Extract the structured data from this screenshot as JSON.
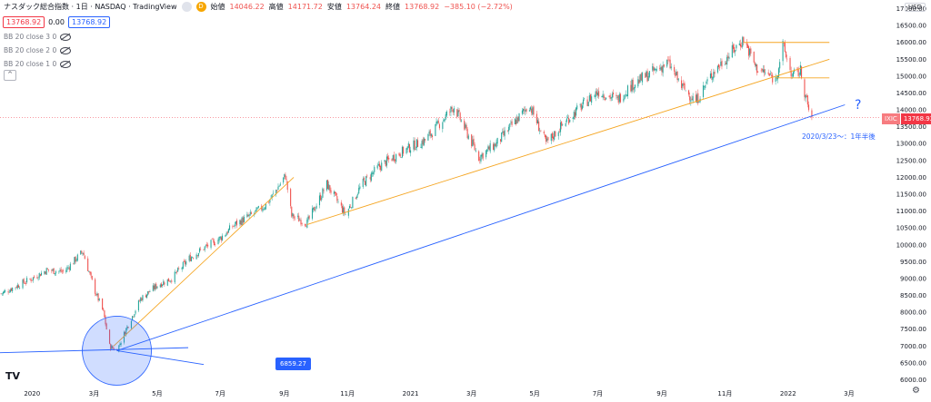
{
  "header": {
    "title": "ナスダック総合指数 · 1日 · NASDAQ · TradingView",
    "d_badge": "D",
    "open_label": "始値",
    "open_value": "14046.22",
    "high_label": "高値",
    "high_value": "14171.72",
    "low_label": "安値",
    "low_value": "13764.24",
    "close_label": "終値",
    "close_value": "13768.92",
    "change": "−385.10 (−2.72%)"
  },
  "price_boxes": {
    "sell": "13768.92",
    "spread": "0.00",
    "buy": "13768.92"
  },
  "indicators": [
    "BB 20 close 3 0",
    "BB 20 close 2 0",
    "BB 20 close 1 0"
  ],
  "collapse_label": "^",
  "currency": "USD",
  "price_tag": {
    "code": "IXIC",
    "value": "13768.92"
  },
  "annotations": {
    "question": "?",
    "note": "2020/3/23〜：1年半後",
    "value_box": "6859.27"
  },
  "logo_text": "TV",
  "settings_icon": "gear-icon",
  "chart_data": {
    "type": "candlestick",
    "x_tick_labels": [
      "2020",
      "3月",
      "5月",
      "7月",
      "9月",
      "11月",
      "2021",
      "3月",
      "5月",
      "7月",
      "9月",
      "11月",
      "2022",
      "3月"
    ],
    "x_tick_dates": [
      "2020-01-01",
      "2020-03-01",
      "2020-05-01",
      "2020-07-01",
      "2020-09-01",
      "2020-11-01",
      "2021-01-01",
      "2021-03-01",
      "2021-05-01",
      "2021-07-01",
      "2021-09-01",
      "2021-11-01",
      "2022-01-01",
      "2022-03-01"
    ],
    "y_tick_labels": [
      "6000.00",
      "6500.00",
      "7000.00",
      "7500.00",
      "8000.00",
      "8500.00",
      "9000.00",
      "9500.00",
      "10000.00",
      "10500.00",
      "11000.00",
      "11500.00",
      "12000.00",
      "12500.00",
      "13000.00",
      "13500.00",
      "14000.00",
      "14500.00",
      "15000.00",
      "15500.00",
      "16000.00",
      "16500.00",
      "17000.00"
    ],
    "ylim": [
      5850,
      17150
    ],
    "series": [
      {
        "values": [
          [
            "2019-12-02",
            8550
          ],
          [
            "2019-12-15",
            8750
          ],
          [
            "2020-01-01",
            9000
          ],
          [
            "2020-01-15",
            9250
          ],
          [
            "2020-02-01",
            9200
          ],
          [
            "2020-02-19",
            9800
          ],
          [
            "2020-03-01",
            8700
          ],
          [
            "2020-03-10",
            8000
          ],
          [
            "2020-03-16",
            7000
          ],
          [
            "2020-03-23",
            6860
          ],
          [
            "2020-04-01",
            7500
          ],
          [
            "2020-04-15",
            8400
          ],
          [
            "2020-05-01",
            8800
          ],
          [
            "2020-05-15",
            9000
          ],
          [
            "2020-06-01",
            9600
          ],
          [
            "2020-06-15",
            9900
          ],
          [
            "2020-07-01",
            10200
          ],
          [
            "2020-07-15",
            10600
          ],
          [
            "2020-08-01",
            10900
          ],
          [
            "2020-08-15",
            11200
          ],
          [
            "2020-09-02",
            12050
          ],
          [
            "2020-09-08",
            10850
          ],
          [
            "2020-09-23",
            10650
          ],
          [
            "2020-10-12",
            11800
          ],
          [
            "2020-10-30",
            10900
          ],
          [
            "2020-11-15",
            11800
          ],
          [
            "2020-12-01",
            12300
          ],
          [
            "2020-12-15",
            12600
          ],
          [
            "2021-01-01",
            12900
          ],
          [
            "2021-01-15",
            13100
          ],
          [
            "2021-02-12",
            14100
          ],
          [
            "2021-03-08",
            12600
          ],
          [
            "2021-03-25",
            13000
          ],
          [
            "2021-04-26",
            14150
          ],
          [
            "2021-05-12",
            13000
          ],
          [
            "2021-06-01",
            13700
          ],
          [
            "2021-06-15",
            14100
          ],
          [
            "2021-07-01",
            14550
          ],
          [
            "2021-07-20",
            14300
          ],
          [
            "2021-08-01",
            14700
          ],
          [
            "2021-09-07",
            15400
          ],
          [
            "2021-09-20",
            14700
          ],
          [
            "2021-10-04",
            14250
          ],
          [
            "2021-10-20",
            15100
          ],
          [
            "2021-11-19",
            16100
          ],
          [
            "2021-12-01",
            15250
          ],
          [
            "2021-12-20",
            14900
          ],
          [
            "2021-12-27",
            15900
          ],
          [
            "2022-01-05",
            15000
          ],
          [
            "2022-01-13",
            15150
          ],
          [
            "2022-01-20",
            14100
          ],
          [
            "2022-01-24",
            13770
          ]
        ]
      }
    ],
    "drawn_lines": [
      {
        "color": "#f5a623",
        "points": [
          [
            "2020-03-20",
            7000
          ],
          [
            "2020-09-10",
            12000
          ]
        ]
      },
      {
        "color": "#f5a623",
        "points": [
          [
            "2020-09-23",
            10600
          ],
          [
            "2022-02-10",
            15500
          ]
        ]
      },
      {
        "color": "#f5a623",
        "points": [
          [
            "2021-11-19",
            16000
          ],
          [
            "2022-02-10",
            16000
          ]
        ]
      },
      {
        "color": "#f5a623",
        "points": [
          [
            "2021-12-20",
            14950
          ],
          [
            "2022-02-10",
            14950
          ]
        ]
      },
      {
        "color": "#2962ff",
        "points": [
          [
            "2020-03-23",
            6860
          ],
          [
            "2022-02-25",
            14150
          ]
        ]
      },
      {
        "color": "#2962ff",
        "points": [
          [
            "2019-12-01",
            6800
          ],
          [
            "2020-05-31",
            6950
          ]
        ]
      },
      {
        "color": "#2962ff",
        "points": [
          [
            "2020-03-23",
            6860
          ],
          [
            "2020-06-15",
            6450
          ]
        ]
      }
    ],
    "circle_center": [
      "2020-03-23",
      6860
    ],
    "colors": {
      "up": "#26a69a",
      "down": "#ef5350",
      "orange": "#f5a623",
      "blue": "#2962ff"
    }
  }
}
